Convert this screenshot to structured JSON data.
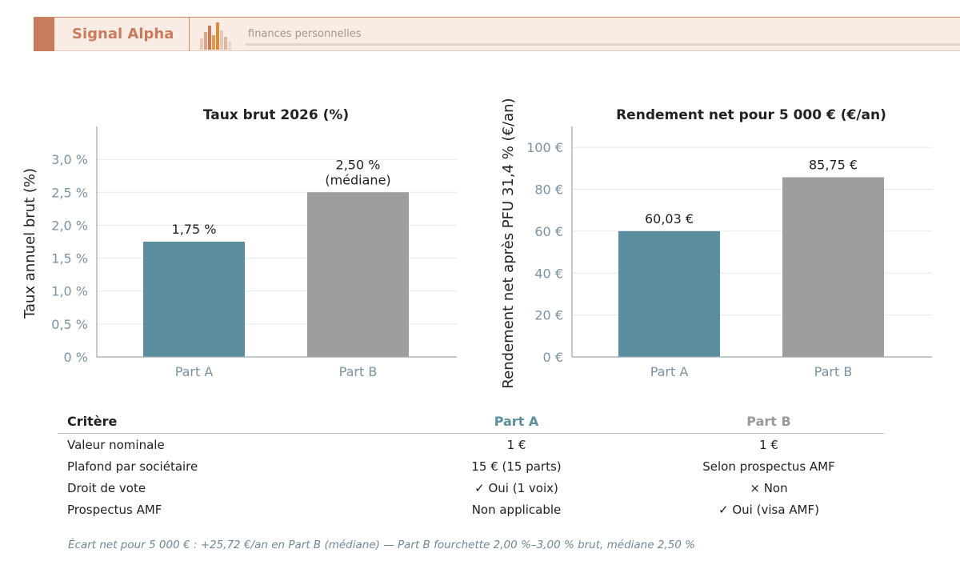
{
  "header": {
    "brand": "Signal Alpha",
    "tagline": "finances personnelles",
    "logo_icon": "bar-chart-logo-icon"
  },
  "colors": {
    "part_a": "#5b8fa0",
    "part_b": "#9e9e9e",
    "brand": "#c97c5d"
  },
  "chart_data": [
    {
      "type": "bar",
      "title": "Taux brut 2026 (%)",
      "ylabel": "Taux annuel brut (%)",
      "categories": [
        "Part A",
        "Part B"
      ],
      "values": [
        1.75,
        2.5
      ],
      "value_labels": [
        "1,75 %",
        "2,50 %"
      ],
      "value_sublabels": [
        "",
        "(médiane)"
      ],
      "ylim": [
        0,
        3.5
      ],
      "yticks": [
        0,
        0.5,
        1.0,
        1.5,
        2.0,
        2.5,
        3.0
      ],
      "ytick_labels": [
        "0 %",
        "0,5 %",
        "1,0 %",
        "1,5 %",
        "2,0 %",
        "2,5 %",
        "3,0 %"
      ],
      "grid": true
    },
    {
      "type": "bar",
      "title": "Rendement net pour 5 000 € (€/an)",
      "ylabel": "Rendement net après PFU 31,4 % (€/an)",
      "categories": [
        "Part A",
        "Part B"
      ],
      "values": [
        60.03,
        85.75
      ],
      "value_labels": [
        "60,03 €",
        "85,75 €"
      ],
      "value_sublabels": [
        "",
        ""
      ],
      "ylim": [
        0,
        110
      ],
      "yticks": [
        0,
        20,
        40,
        60,
        80,
        100
      ],
      "ytick_labels": [
        "0 €",
        "20 €",
        "40 €",
        "60 €",
        "80 €",
        "100 €"
      ],
      "grid": true
    }
  ],
  "table": {
    "headers": [
      "Critère",
      "Part A",
      "Part B"
    ],
    "rows": [
      {
        "label": "Valeur nominale",
        "a": "1 €",
        "b": "1 €",
        "a_status": "",
        "b_status": ""
      },
      {
        "label": "Plafond par sociétaire",
        "a": "15 € (15 parts)",
        "b": "Selon prospectus AMF",
        "a_status": "",
        "b_status": ""
      },
      {
        "label": "Droit de vote",
        "a": "✓ Oui (1 voix)",
        "b": "× Non",
        "a_status": "yes",
        "b_status": "no"
      },
      {
        "label": "Prospectus AMF",
        "a": "Non applicable",
        "b": "✓ Oui (visa AMF)",
        "a_status": "",
        "b_status": "yes"
      }
    ]
  },
  "note": "Écart net pour 5 000 € : +25,72 €/an en Part B (médiane) — Part B fourchette 2,00 %–3,00 % brut, médiane 2,50 %"
}
